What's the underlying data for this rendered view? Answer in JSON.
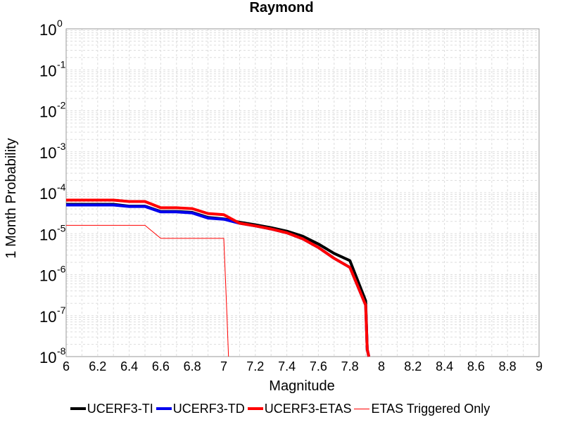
{
  "chart_data": {
    "type": "line",
    "title": "Raymond",
    "xlabel": "Magnitude",
    "ylabel": "1 Month Probability",
    "xlim": [
      6,
      9
    ],
    "ylim": [
      1e-08,
      1
    ],
    "yscale": "log",
    "grid": true,
    "legend_position": "bottom",
    "x_ticks": [
      "6",
      "6.2",
      "6.4",
      "6.6",
      "6.8",
      "7",
      "7.2",
      "7.4",
      "7.6",
      "7.8",
      "8",
      "8.2",
      "8.4",
      "8.6",
      "8.8",
      "9"
    ],
    "y_ticks": [
      {
        "base": "10",
        "exp": "0"
      },
      {
        "base": "10",
        "exp": "-1"
      },
      {
        "base": "10",
        "exp": "-2"
      },
      {
        "base": "10",
        "exp": "-3"
      },
      {
        "base": "10",
        "exp": "-4"
      },
      {
        "base": "10",
        "exp": "-5"
      },
      {
        "base": "10",
        "exp": "-6"
      },
      {
        "base": "10",
        "exp": "-7"
      },
      {
        "base": "10",
        "exp": "-8"
      }
    ],
    "series": [
      {
        "name": "UCERF3-TI",
        "color": "#000000",
        "x": [
          6.0,
          6.1,
          6.2,
          6.3,
          6.4,
          6.5,
          6.6,
          6.7,
          6.8,
          6.9,
          7.0,
          7.1,
          7.2,
          7.3,
          7.4,
          7.5,
          7.6,
          7.7,
          7.8,
          7.9,
          7.91,
          7.92
        ],
        "y": [
          5.2e-05,
          5.2e-05,
          5.2e-05,
          5.2e-05,
          4.7e-05,
          4.7e-05,
          3.5e-05,
          3.5e-05,
          3.3e-05,
          2.5e-05,
          2.3e-05,
          1.9e-05,
          1.65e-05,
          1.4e-05,
          1.15e-05,
          8.7e-06,
          5.6e-06,
          3.3e-06,
          2.2e-06,
          2.3e-07,
          1.5e-08,
          1e-08
        ]
      },
      {
        "name": "UCERF3-TD",
        "color": "#0000ee",
        "x": [
          6.0,
          6.1,
          6.2,
          6.3,
          6.4,
          6.5,
          6.6,
          6.7,
          6.8,
          6.9,
          7.0,
          7.1,
          7.2,
          7.3,
          7.4,
          7.5,
          7.6,
          7.7,
          7.8,
          7.9,
          7.91,
          7.92
        ],
        "y": [
          5e-05,
          5e-05,
          5e-05,
          5e-05,
          4.6e-05,
          4.6e-05,
          3.4e-05,
          3.4e-05,
          3.2e-05,
          2.4e-05,
          2.25e-05,
          1.8e-05,
          1.55e-05,
          1.3e-05,
          1.05e-05,
          7.5e-06,
          4.6e-06,
          2.5e-06,
          1.5e-06,
          1.8e-07,
          1.5e-08,
          1e-08
        ]
      },
      {
        "name": "UCERF3-ETAS",
        "color": "#ff0000",
        "x": [
          6.0,
          6.1,
          6.2,
          6.3,
          6.4,
          6.5,
          6.6,
          6.7,
          6.8,
          6.9,
          7.0,
          7.1,
          7.2,
          7.3,
          7.4,
          7.5,
          7.6,
          7.7,
          7.8,
          7.9,
          7.91,
          7.92
        ],
        "y": [
          6.6e-05,
          6.6e-05,
          6.6e-05,
          6.6e-05,
          6.1e-05,
          6.1e-05,
          4.3e-05,
          4.3e-05,
          4.1e-05,
          3.1e-05,
          2.9e-05,
          1.8e-05,
          1.55e-05,
          1.3e-05,
          1.05e-05,
          7.5e-06,
          4.6e-06,
          2.5e-06,
          1.5e-06,
          1.8e-07,
          1.5e-08,
          1e-08
        ]
      },
      {
        "name": "ETAS Triggered Only",
        "color": "#ff0000",
        "thin": true,
        "x": [
          6.0,
          6.1,
          6.2,
          6.3,
          6.4,
          6.5,
          6.6,
          6.7,
          6.8,
          6.9,
          7.0,
          7.02,
          7.03
        ],
        "y": [
          1.6e-05,
          1.6e-05,
          1.6e-05,
          1.6e-05,
          1.6e-05,
          1.6e-05,
          7.7e-06,
          7.7e-06,
          7.7e-06,
          7.7e-06,
          7.7e-06,
          1e-07,
          1e-08
        ]
      }
    ]
  }
}
